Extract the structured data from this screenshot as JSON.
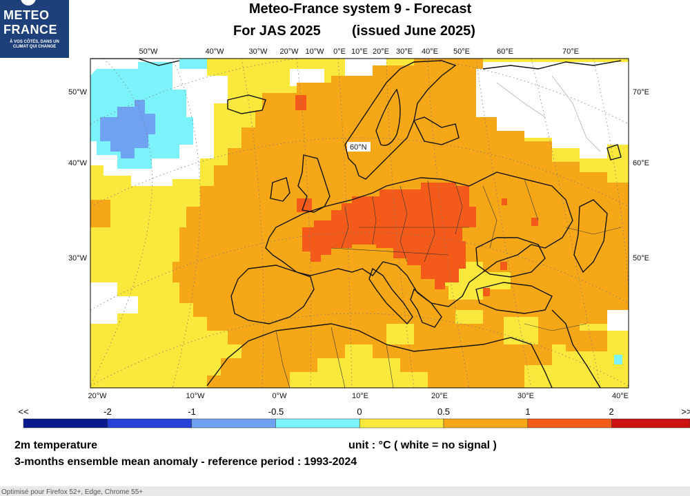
{
  "logo": {
    "line1": "METEO",
    "line2": "FRANCE",
    "tagline": "À VOS CÔTÉS, DANS UN CLIMAT QUI CHANGE"
  },
  "title": {
    "line1": "Meteo-France system 9  -  Forecast",
    "period": "For JAS 2025",
    "issued": "(issued June 2025)"
  },
  "map": {
    "top_lon_labels": [
      "50°W",
      "40°W",
      "30°W",
      "20°W",
      "10°W",
      "0°E",
      "10°E",
      "20°E",
      "30°E",
      "40°E",
      "50°E",
      "60°E",
      "70°E"
    ],
    "bottom_lon_labels": [
      "20°W",
      "10°W",
      "0°W",
      "10°E",
      "20°E",
      "30°E",
      "40°E"
    ],
    "left_lat_labels": [
      "50°W",
      "40°W",
      "30°W"
    ],
    "right_lat_labels": [
      "70°E",
      "60°E",
      "50°E"
    ],
    "inner_label": "60°N",
    "colors": {
      "below_minus2": "#0a1a8c",
      "m2_m1": "#2640d8",
      "m1_m05": "#6fa3f2",
      "m05_0": "#7cf3fa",
      "no_signal": "#ffffff",
      "p0_05": "#fae83c",
      "p05_1": "#f5a717",
      "p1_2": "#f45b1b",
      "above2": "#cc1111"
    }
  },
  "colorbar": {
    "ticks": [
      "<<",
      "-2",
      "-1",
      "-0.5",
      "0",
      "0.5",
      "1",
      "2",
      ">>"
    ],
    "colors": [
      "#0a1a8c",
      "#2640d8",
      "#6fa3f2",
      "#7cf3fa",
      "#fae83c",
      "#f5a717",
      "#f45b1b",
      "#cc1111"
    ]
  },
  "footer": {
    "variable": "2m temperature",
    "unit": "unit : °C  ( white = no signal )",
    "description": "3-months ensemble mean anomaly - reference period : 1993-2024"
  },
  "browser_note": "Optimisé pour Firefox 52+, Edge, Chrome 55+"
}
